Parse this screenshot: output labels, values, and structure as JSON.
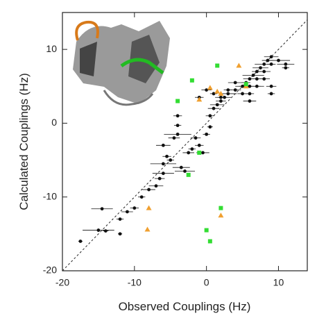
{
  "chart_data": {
    "type": "scatter",
    "x_label": "Observed Couplings (Hz)",
    "y_label": "Calculated Couplings (Hz)",
    "xlim": [
      -20,
      14
    ],
    "ylim": [
      -20,
      15
    ],
    "xticks": [
      -20,
      -10,
      0,
      10
    ],
    "yticks": [
      -20,
      -10,
      0,
      10
    ],
    "diagonal": true,
    "series": [
      {
        "color": "#111111",
        "marker": "circle",
        "x": [
          -17.5,
          -14.5,
          -15,
          -14,
          -12,
          -12,
          -11,
          -10,
          -9,
          -8,
          -7,
          -6.5,
          -6,
          -6,
          -5.5,
          -6,
          -5,
          -4.5,
          -4,
          -3.5,
          -3,
          -4,
          -4,
          -2.5,
          -2,
          -1.5,
          -1,
          -0.5,
          0,
          0.5,
          0.5,
          1,
          1.5,
          2,
          2.5,
          3,
          4,
          5,
          5.5,
          6,
          6.5,
          7,
          7.5,
          8,
          8.5,
          9,
          9,
          8,
          7,
          6,
          5,
          10,
          11,
          11,
          8,
          7,
          6,
          9,
          9,
          6,
          4,
          3,
          2,
          1,
          0,
          -1
        ],
        "y": [
          -16,
          -11.6,
          -14.5,
          -14.6,
          -15,
          -13,
          -12,
          -11.5,
          -10,
          -9,
          -8.5,
          -7.5,
          -6.8,
          -5.5,
          -4.5,
          -3,
          -5,
          -2,
          -1.5,
          -6,
          -6.5,
          -0.3,
          1,
          -4,
          -3.5,
          -2,
          -3,
          -4,
          -1.5,
          -0.5,
          1,
          2,
          2.5,
          3,
          3.5,
          4,
          4.5,
          5,
          5.5,
          6,
          6.5,
          7,
          7.5,
          8,
          8.5,
          9,
          8,
          7,
          6,
          5,
          4,
          8.5,
          8,
          7.5,
          6,
          5,
          4,
          5,
          4,
          3,
          5.5,
          4.5,
          3.5,
          4,
          4.5,
          3.5
        ],
        "x_err": [
          0.3,
          1.5,
          2.2,
          0.4,
          0.3,
          0.5,
          0.8,
          0.6,
          0.5,
          0.9,
          1,
          0.7,
          1.5,
          1.8,
          0.6,
          1,
          0.5,
          0.8,
          1.9,
          1.2,
          1.4,
          0.5,
          0.6,
          0.8,
          0.5,
          0.7,
          0.6,
          0.9,
          0.5,
          0.4,
          0.6,
          0.8,
          1,
          0.7,
          0.9,
          1.2,
          0.8,
          1,
          0.6,
          0.9,
          1.5,
          0.7,
          1.1,
          1.3,
          0.8,
          1,
          0.6,
          0.9,
          1.2,
          1.5,
          0.7,
          1.6,
          1.2,
          0.5,
          0.8,
          1,
          0.6,
          0.7,
          0.5,
          0.9,
          1,
          0.6,
          0.8,
          0.5,
          0.7,
          0.6
        ]
      },
      {
        "color": "#f0a030",
        "marker": "triangle",
        "x": [
          4.5,
          0.5,
          1.5,
          2,
          -1,
          5.5,
          -8,
          -8.2,
          2
        ],
        "y": [
          7.8,
          4.8,
          4.3,
          4,
          3.2,
          5,
          -11.5,
          -14.4,
          -12.5
        ]
      },
      {
        "color": "#33dd33",
        "marker": "square",
        "x": [
          1.5,
          -2,
          -4,
          -1,
          -2.5,
          0,
          0.5,
          2,
          5.5
        ],
        "y": [
          7.8,
          5.8,
          3,
          -4,
          -7,
          -14.5,
          -16,
          -11.5,
          5.3
        ]
      }
    ]
  }
}
